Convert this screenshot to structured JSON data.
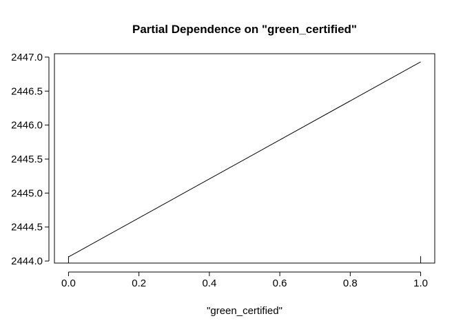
{
  "chart_data": {
    "type": "line",
    "title": "Partial Dependence on \"green_certified\"",
    "xlabel": "\"green_certified\"",
    "ylabel": "",
    "x": [
      0.0,
      1.0
    ],
    "series": [
      {
        "values": [
          2444.06,
          2446.93
        ],
        "color": "#000000"
      }
    ],
    "xlim": [
      -0.04,
      1.04
    ],
    "ylim": [
      2443.97,
      2447.05
    ],
    "xticks": [
      0.0,
      0.2,
      0.4,
      0.6,
      0.8,
      1.0
    ],
    "xtick_labels": [
      "0.0",
      "0.2",
      "0.4",
      "0.6",
      "0.8",
      "1.0"
    ],
    "yticks": [
      2444.0,
      2444.5,
      2445.0,
      2445.5,
      2446.0,
      2446.5,
      2447.0
    ],
    "ytick_labels": [
      "2444.0",
      "2444.5",
      "2445.0",
      "2445.5",
      "2446.0",
      "2446.5",
      "2447.0"
    ],
    "rug_x": [
      0.0,
      1.0
    ],
    "grid": false,
    "legend": "none"
  }
}
